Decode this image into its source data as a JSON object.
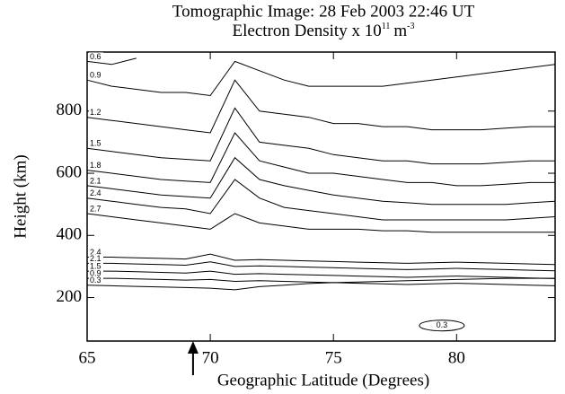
{
  "chart_data": {
    "type": "contour",
    "title": "Tomographic Image:   28 Feb 2003   22:46 UT",
    "subtitle": {
      "text": "Electron Density x 10",
      "exponent": "11",
      "unit": "m",
      "unit_exponent": "-3"
    },
    "x_label": "Geographic Latitude (Degrees)",
    "y_label": "Height (km)",
    "xlim": [
      65,
      84
    ],
    "ylim": [
      60,
      990
    ],
    "xticks": [
      65,
      70,
      75,
      80
    ],
    "yticks": [
      200,
      400,
      600,
      800
    ],
    "marker_x": 69.3,
    "color": "#000000",
    "x": [
      65,
      66,
      67,
      68,
      69,
      70,
      71,
      72,
      73,
      74,
      75,
      76,
      77,
      78,
      79,
      80,
      81,
      82,
      83,
      84
    ],
    "series": [
      {
        "name": "0.6",
        "values": [
          960,
          950,
          970,
          null,
          null,
          null,
          null,
          null,
          null,
          null,
          null,
          null,
          null,
          null,
          null,
          null,
          null,
          null,
          null,
          null
        ]
      },
      {
        "name": "0.9",
        "values": [
          900,
          880,
          870,
          860,
          860,
          850,
          960,
          930,
          900,
          880,
          880,
          880,
          880,
          890,
          900,
          910,
          920,
          930,
          940,
          950
        ]
      },
      {
        "name": "1.2",
        "values": [
          780,
          770,
          760,
          750,
          740,
          730,
          900,
          800,
          790,
          780,
          760,
          760,
          750,
          750,
          740,
          740,
          740,
          745,
          750,
          750
        ]
      },
      {
        "name": "1.5",
        "values": [
          680,
          670,
          660,
          650,
          645,
          640,
          810,
          700,
          690,
          680,
          660,
          650,
          640,
          640,
          630,
          630,
          630,
          635,
          640,
          640
        ]
      },
      {
        "name": "1.8",
        "values": [
          610,
          600,
          590,
          580,
          575,
          570,
          730,
          640,
          620,
          600,
          600,
          590,
          580,
          570,
          570,
          560,
          560,
          565,
          570,
          570
        ]
      },
      {
        "name": "2.1",
        "values": [
          560,
          550,
          540,
          530,
          525,
          520,
          650,
          580,
          560,
          545,
          530,
          520,
          510,
          505,
          500,
          500,
          500,
          500,
          505,
          510
        ]
      },
      {
        "name": "2.4",
        "values": [
          520,
          510,
          500,
          490,
          485,
          470,
          580,
          520,
          490,
          480,
          470,
          460,
          450,
          450,
          450,
          450,
          450,
          450,
          455,
          460
        ]
      },
      {
        "name": "2.7",
        "values": [
          470,
          460,
          450,
          440,
          430,
          420,
          470,
          440,
          430,
          420,
          420,
          420,
          415,
          415,
          410,
          410,
          410,
          410,
          410,
          410
        ]
      },
      {
        "name": "2.4",
        "values": [
          330,
          330,
          328,
          326,
          324,
          340,
          320,
          322,
          320,
          318,
          316,
          314,
          312,
          310,
          312,
          314,
          312,
          310,
          308,
          306
        ]
      },
      {
        "name": "2.1",
        "values": [
          310,
          310,
          308,
          306,
          304,
          315,
          300,
          302,
          300,
          298,
          296,
          294,
          292,
          290,
          292,
          294,
          292,
          290,
          288,
          286
        ]
      },
      {
        "name": "1.5",
        "values": [
          285,
          285,
          283,
          281,
          279,
          285,
          275,
          277,
          275,
          273,
          271,
          269,
          267,
          265,
          267,
          269,
          267,
          265,
          263,
          261
        ]
      },
      {
        "name": "0.9",
        "values": [
          262,
          262,
          260,
          258,
          256,
          258,
          252,
          254,
          252,
          250,
          248,
          246,
          244,
          242,
          244,
          246,
          244,
          242,
          240,
          238
        ]
      },
      {
        "name": "0.3",
        "values": [
          240,
          238,
          236,
          234,
          232,
          230,
          225,
          235,
          240,
          245,
          248,
          250,
          252,
          254,
          256,
          258,
          260,
          262,
          262,
          262
        ]
      }
    ],
    "annotations": [
      {
        "text": "0.3",
        "x": 79.4,
        "y": 110
      }
    ]
  }
}
